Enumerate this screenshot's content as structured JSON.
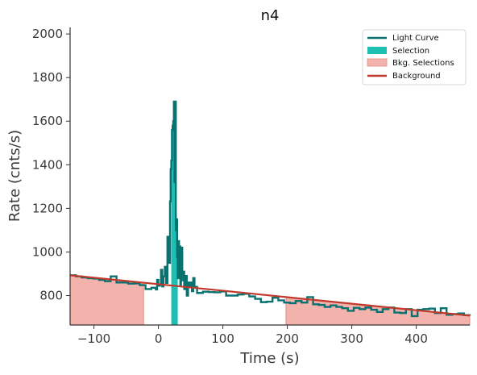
{
  "chart_data": {
    "type": "line",
    "title": "n4",
    "xlabel": "Time (s)",
    "ylabel": "Rate (cnts/s)",
    "xlim": [
      -137,
      483
    ],
    "ylim": [
      665,
      2030
    ],
    "x_ticks": [
      -100,
      0,
      100,
      200,
      300,
      400
    ],
    "y_ticks": [
      800,
      1000,
      1200,
      1400,
      1600,
      1800,
      2000
    ],
    "x_tick_labels": [
      "−100",
      "0",
      "100",
      "200",
      "300",
      "400"
    ],
    "y_tick_labels": [
      "800",
      "1000",
      "1200",
      "1400",
      "1600",
      "1800",
      "2000"
    ],
    "grid": false,
    "legend_position": "top-right",
    "legend": [
      {
        "label": "Light Curve",
        "kind": "line",
        "color": "#0a7171"
      },
      {
        "label": "Selection",
        "kind": "patch",
        "color": "#1dbfb3"
      },
      {
        "label": "Bkg. Selections",
        "kind": "patch",
        "color": "#f4b2ad",
        "edge": "#e58a82"
      },
      {
        "label": "Background",
        "kind": "line",
        "color": "#c0392b"
      }
    ],
    "colors": {
      "light_curve": "#0a7171",
      "selection": "#1dbfb3",
      "bkg_selection_fill": "#f4b2ad",
      "bkg_selection_edge": "#e58a82",
      "background": "#c0392b"
    },
    "background_fit": {
      "x": [
        -137,
        483
      ],
      "y": [
        893,
        708
      ]
    },
    "bkg_selections": [
      [
        -137,
        -23
      ],
      [
        198,
        483
      ]
    ],
    "selection": [
      20,
      30
    ],
    "light_curve": {
      "x": [
        -137,
        -128,
        -119,
        -110,
        -101,
        -92,
        -83,
        -74,
        -65,
        -56,
        -47,
        -38,
        -29,
        -20,
        -11,
        -4,
        -2,
        0,
        2,
        4,
        6,
        8,
        10,
        12,
        14,
        16,
        18,
        19,
        20,
        21,
        22,
        23,
        24,
        25,
        26,
        27,
        28,
        29,
        30,
        31,
        32,
        33,
        34,
        35,
        36,
        37,
        38,
        39,
        40,
        42,
        44,
        46,
        48,
        50,
        52,
        54,
        56,
        58,
        60,
        69,
        78,
        87,
        96,
        105,
        114,
        123,
        132,
        141,
        150,
        159,
        168,
        177,
        186,
        195,
        204,
        213,
        222,
        231,
        240,
        249,
        258,
        267,
        276,
        285,
        294,
        303,
        312,
        321,
        330,
        339,
        348,
        357,
        366,
        375,
        384,
        393,
        402,
        411,
        420,
        429,
        438,
        447,
        456,
        465,
        474,
        483
      ],
      "y": [
        893,
        888,
        883,
        880,
        878,
        872,
        866,
        888,
        860,
        860,
        855,
        856,
        848,
        830,
        836,
        828,
        872,
        845,
        848,
        918,
        842,
        888,
        932,
        858,
        1070,
        950,
        1232,
        1380,
        1420,
        1560,
        1580,
        1600,
        1690,
        1320,
        1690,
        1100,
        1150,
        978,
        880,
        1050,
        960,
        1025,
        850,
        960,
        1020,
        880,
        870,
        910,
        830,
        890,
        800,
        860,
        840,
        860,
        820,
        880,
        838,
        840,
        812,
        818,
        816,
        815,
        819,
        800,
        800,
        805,
        808,
        796,
        785,
        770,
        772,
        790,
        778,
        768,
        765,
        775,
        768,
        793,
        760,
        757,
        748,
        755,
        748,
        742,
        730,
        744,
        738,
        745,
        735,
        725,
        738,
        745,
        722,
        720,
        738,
        706,
        735,
        738,
        740,
        720,
        742,
        712,
        715,
        718,
        710,
        708
      ]
    }
  }
}
